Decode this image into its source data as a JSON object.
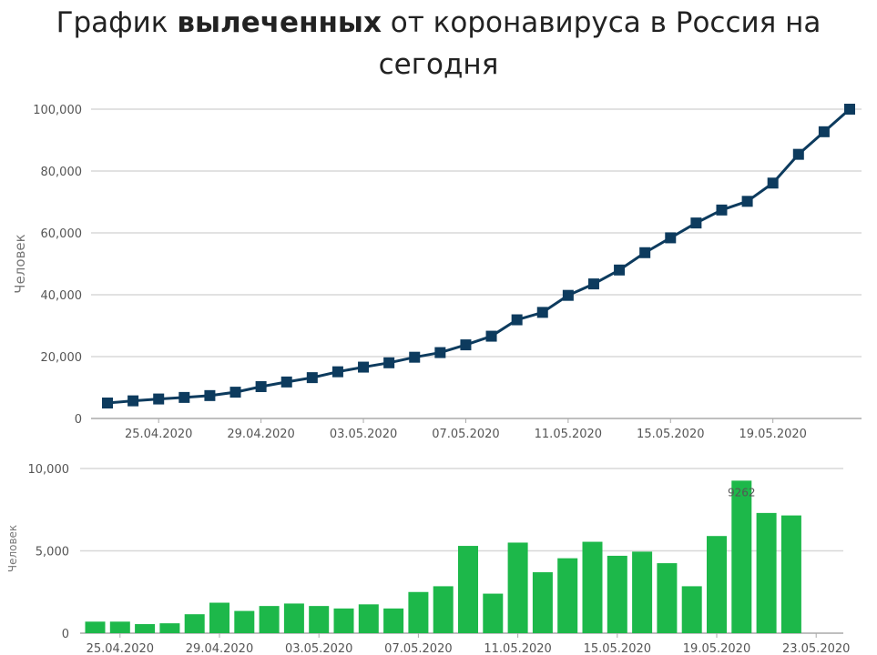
{
  "page": {
    "title_prefix": "График ",
    "title_bold": "вылеченных",
    "title_suffix": " от коронавируса в Россия на сегодня"
  },
  "colors": {
    "line": "#0d3b5e",
    "marker": "#0d3b5e",
    "bar": "#1db84a",
    "grid": "#d8d8d8",
    "axis": "#aaaaaa"
  },
  "chart_data": [
    {
      "type": "line",
      "title": "",
      "xlabel": "",
      "ylabel": "Человек",
      "ylim": [
        0,
        100000
      ],
      "y_ticks": [
        0,
        20000,
        40000,
        60000,
        80000,
        100000
      ],
      "y_tick_labels": [
        "0",
        "20,000",
        "40,000",
        "60,000",
        "80,000",
        "100,000"
      ],
      "x_tick_labels": [
        "25.04.2020",
        "29.04.2020",
        "03.05.2020",
        "07.05.2020",
        "11.05.2020",
        "15.05.2020",
        "19.05.2020"
      ],
      "x": [
        "23.04.2020",
        "24.04.2020",
        "25.04.2020",
        "26.04.2020",
        "27.04.2020",
        "28.04.2020",
        "29.04.2020",
        "30.04.2020",
        "01.05.2020",
        "02.05.2020",
        "03.05.2020",
        "04.05.2020",
        "05.05.2020",
        "06.05.2020",
        "07.05.2020",
        "08.05.2020",
        "09.05.2020",
        "10.05.2020",
        "11.05.2020",
        "12.05.2020",
        "13.05.2020",
        "14.05.2020",
        "15.05.2020",
        "16.05.2020",
        "17.05.2020",
        "18.05.2020",
        "19.05.2020",
        "20.05.2020",
        "21.05.2020",
        "22.05.2020"
      ],
      "series": [
        {
          "values": [
            5000,
            5700,
            6300,
            6800,
            7400,
            8500,
            10300,
            11800,
            13200,
            15100,
            16600,
            18000,
            19800,
            21300,
            23800,
            26600,
            31900,
            34300,
            39800,
            43500,
            48000,
            53600,
            58400,
            63200,
            67400,
            70200,
            76100,
            85400,
            92700,
            100000
          ]
        }
      ],
      "grid": true
    },
    {
      "type": "bar",
      "title": "",
      "xlabel": "",
      "ylabel": "Человек",
      "ylim": [
        0,
        10000
      ],
      "y_ticks": [
        0,
        5000,
        10000
      ],
      "y_tick_labels": [
        "0",
        "5,000",
        "10,000"
      ],
      "x_tick_labels": [
        "25.04.2020",
        "29.04.2020",
        "03.05.2020",
        "07.05.2020",
        "11.05.2020",
        "15.05.2020",
        "19.05.2020",
        "23.05.2020"
      ],
      "categories": [
        "24.04.2020",
        "25.04.2020",
        "26.04.2020",
        "27.04.2020",
        "28.04.2020",
        "29.04.2020",
        "30.04.2020",
        "01.05.2020",
        "02.05.2020",
        "03.05.2020",
        "04.05.2020",
        "05.05.2020",
        "06.05.2020",
        "07.05.2020",
        "08.05.2020",
        "09.05.2020",
        "10.05.2020",
        "11.05.2020",
        "12.05.2020",
        "13.05.2020",
        "14.05.2020",
        "15.05.2020",
        "16.05.2020",
        "17.05.2020",
        "18.05.2020",
        "19.05.2020",
        "20.05.2020",
        "21.05.2020",
        "22.05.2020",
        "23.05.2020"
      ],
      "values": [
        700,
        700,
        550,
        600,
        1150,
        1850,
        1350,
        1650,
        1800,
        1650,
        1500,
        1750,
        1500,
        2500,
        2850,
        5300,
        2400,
        5500,
        3700,
        4550,
        5550,
        4700,
        4950,
        4250,
        2850,
        5900,
        9262,
        7300,
        7150,
        0
      ],
      "data_labels": [
        {
          "category": "20.05.2020",
          "text": "9262"
        }
      ],
      "grid": true
    }
  ]
}
